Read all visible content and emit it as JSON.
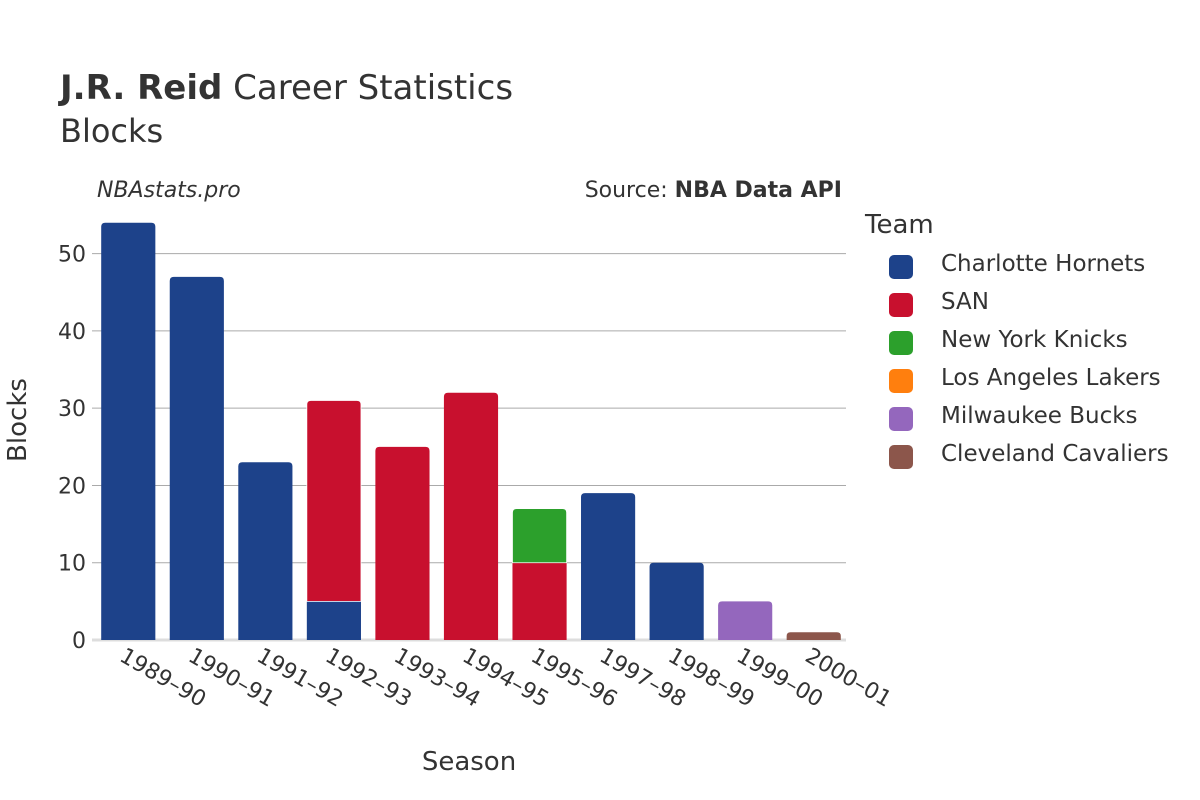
{
  "header": {
    "player": "J.R. Reid",
    "title_rest": " Career Statistics",
    "subtitle": "Blocks",
    "site": "NBAstats.pro",
    "source_prefix": "Source: ",
    "source_name": "NBA Data API"
  },
  "legend": {
    "title": "Team",
    "items": [
      {
        "label": "Charlotte Hornets",
        "color": "#1d428a"
      },
      {
        "label": "SAN",
        "color": "#c8102e"
      },
      {
        "label": "New York Knicks",
        "color": "#2ca02c"
      },
      {
        "label": "Los Angeles Lakers",
        "color": "#ff7f0e"
      },
      {
        "label": "Milwaukee Bucks",
        "color": "#9467bd"
      },
      {
        "label": "Cleveland Cavaliers",
        "color": "#8c564b"
      }
    ]
  },
  "chart_data": {
    "type": "bar",
    "stacked": true,
    "xlabel": "Season",
    "ylabel": "Blocks",
    "ylim": [
      0,
      55
    ],
    "yticks": [
      0,
      10,
      20,
      30,
      40,
      50
    ],
    "grid": true,
    "legend_position": "right",
    "categories": [
      "1989–90",
      "1990–91",
      "1991–92",
      "1992–93",
      "1993–94",
      "1994–95",
      "1995–96",
      "1997–98",
      "1998–99",
      "1999–00",
      "2000–01"
    ],
    "series": [
      {
        "name": "Charlotte Hornets",
        "color": "#1d428a",
        "values": [
          54,
          47,
          23,
          5,
          0,
          0,
          0,
          19,
          10,
          0,
          0
        ]
      },
      {
        "name": "SAN",
        "color": "#c8102e",
        "values": [
          0,
          0,
          0,
          26,
          25,
          32,
          10,
          0,
          0,
          0,
          0
        ]
      },
      {
        "name": "New York Knicks",
        "color": "#2ca02c",
        "values": [
          0,
          0,
          0,
          0,
          0,
          0,
          7,
          0,
          0,
          0,
          0
        ]
      },
      {
        "name": "Los Angeles Lakers",
        "color": "#ff7f0e",
        "values": [
          0,
          0,
          0,
          0,
          0,
          0,
          0,
          0,
          0,
          0,
          0
        ]
      },
      {
        "name": "Milwaukee Bucks",
        "color": "#9467bd",
        "values": [
          0,
          0,
          0,
          0,
          0,
          0,
          0,
          0,
          0,
          5,
          0
        ]
      },
      {
        "name": "Cleveland Cavaliers",
        "color": "#8c564b",
        "values": [
          0,
          0,
          0,
          0,
          0,
          0,
          0,
          0,
          0,
          0,
          1
        ]
      }
    ]
  }
}
